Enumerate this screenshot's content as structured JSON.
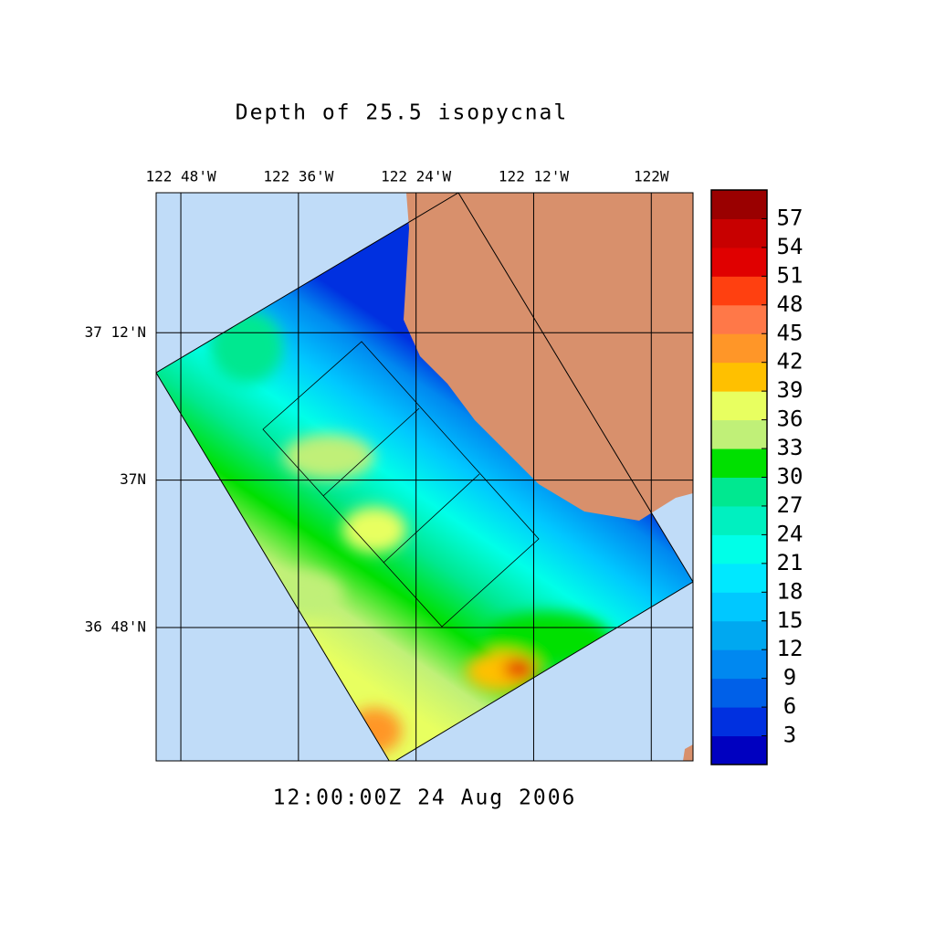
{
  "chart_data": {
    "type": "contour-map",
    "title": "Depth of 25.5 isopycnal",
    "time_label": "12:00:00Z  24 Aug 2006",
    "xlim": [
      -122.842,
      -121.929
    ],
    "ylim": [
      36.619,
      37.39
    ],
    "xticks": [
      {
        "value": -122.8,
        "label": "122 48'W"
      },
      {
        "value": -122.6,
        "label": "122 36'W"
      },
      {
        "value": -122.4,
        "label": "122 24'W"
      },
      {
        "value": -122.2,
        "label": "122 12'W"
      },
      {
        "value": -122,
        "label": "122W"
      }
    ],
    "yticks": [
      {
        "value": 37.2,
        "label": "37 12'N"
      },
      {
        "value": 37,
        "label": "37N"
      },
      {
        "value": 36.8,
        "label": "36 48'N"
      }
    ],
    "grid": true,
    "colorbar": {
      "clim": [
        0,
        60
      ],
      "colors": [
        "#0000c0",
        "#0030e0",
        "#0060e8",
        "#0088f0",
        "#00a8f0",
        "#00c8ff",
        "#00e8ff",
        "#00ffe8",
        "#00f0c0",
        "#00e890",
        "#00e000",
        "#c0f078",
        "#e8ff60",
        "#ffc000",
        "#ff9628",
        "#ff7848",
        "#ff4010",
        "#e00000",
        "#c80000",
        "#9a0000"
      ],
      "ticks": [
        3,
        6,
        9,
        12,
        15,
        18,
        21,
        24,
        27,
        30,
        33,
        36,
        39,
        42,
        45,
        48,
        51,
        54,
        57
      ]
    }
  }
}
